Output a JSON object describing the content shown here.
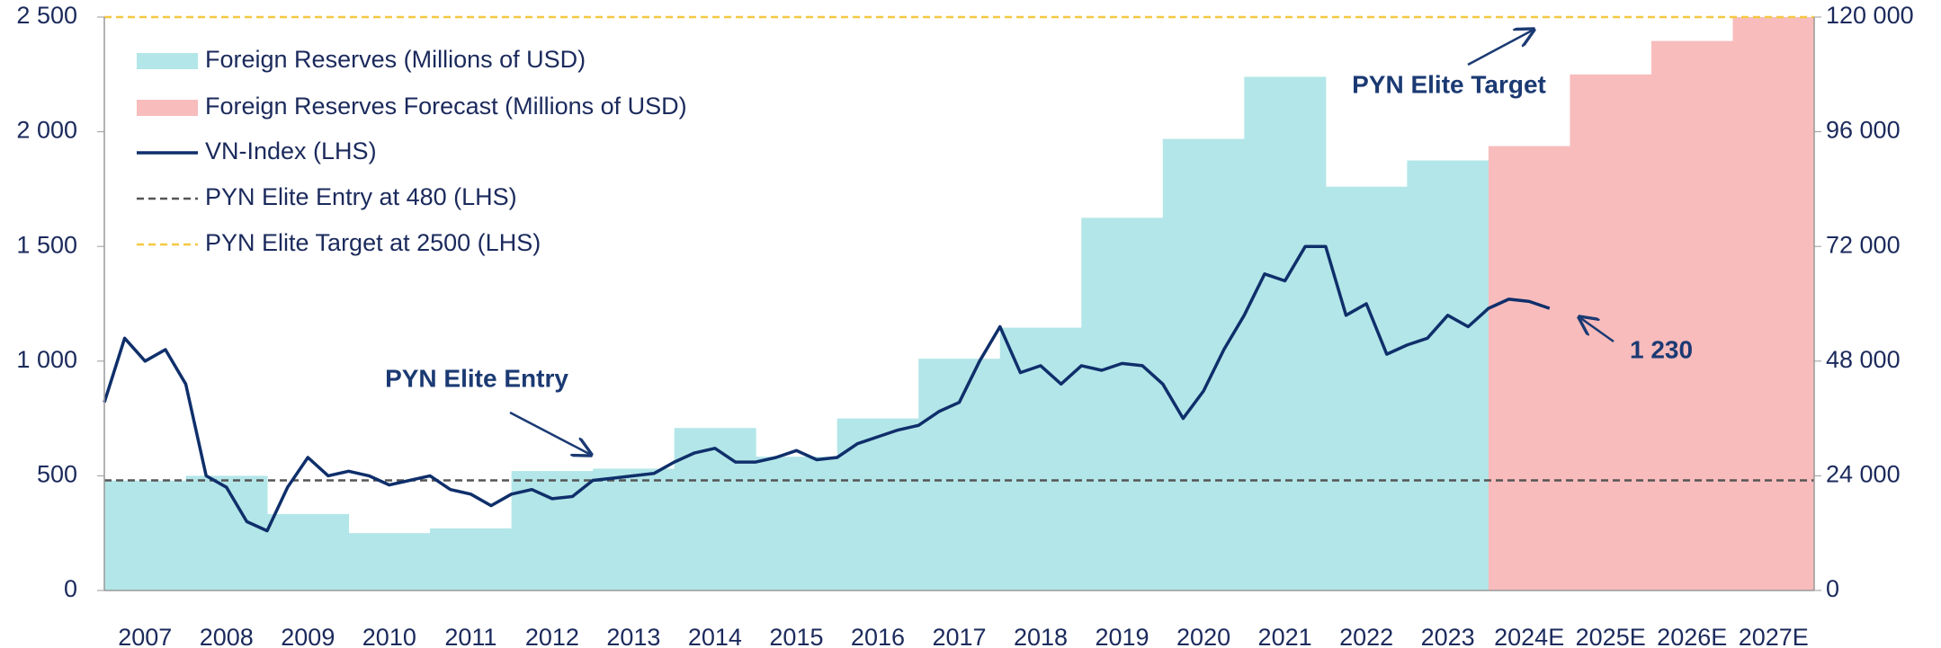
{
  "chart_data": {
    "type": "bar-line",
    "categories": [
      "2007",
      "2008",
      "2009",
      "2010",
      "2011",
      "2012",
      "2013",
      "2014",
      "2015",
      "2016",
      "2017",
      "2018",
      "2019",
      "2020",
      "2021",
      "2022",
      "2023",
      "2024E",
      "2025E",
      "2026E",
      "2027E"
    ],
    "series": [
      {
        "name": "Foreign Reserves (Millions of USD)",
        "color": "#b3e6e8",
        "axis": "y2",
        "values": [
          23000,
          24000,
          16000,
          12000,
          13000,
          25000,
          25500,
          34000,
          28000,
          36000,
          48500,
          55000,
          78000,
          94500,
          107500,
          84500,
          90000,
          null,
          null,
          null,
          null
        ]
      },
      {
        "name": "Foreign Reserves Forecast (Millions of USD)",
        "color": "#f8bcbc",
        "axis": "y2",
        "values": [
          null,
          null,
          null,
          null,
          null,
          null,
          null,
          null,
          null,
          null,
          null,
          null,
          null,
          null,
          null,
          null,
          null,
          93000,
          108000,
          115000,
          120000
        ]
      },
      {
        "name": "VN-Index (LHS)",
        "color": "#0f2f6b",
        "type": "line",
        "x": [
          2007.0,
          2007.25,
          2007.5,
          2007.75,
          2008.0,
          2008.25,
          2008.5,
          2008.75,
          2009.0,
          2009.25,
          2009.5,
          2009.75,
          2010.0,
          2010.25,
          2010.5,
          2010.75,
          2011.0,
          2011.25,
          2011.5,
          2011.75,
          2012.0,
          2012.25,
          2012.5,
          2012.75,
          2013.0,
          2013.25,
          2013.5,
          2013.75,
          2014.0,
          2014.25,
          2014.5,
          2014.75,
          2015.0,
          2015.25,
          2015.5,
          2015.75,
          2016.0,
          2016.25,
          2016.5,
          2016.75,
          2017.0,
          2017.25,
          2017.5,
          2017.75,
          2018.0,
          2018.25,
          2018.5,
          2018.75,
          2019.0,
          2019.25,
          2019.5,
          2019.75,
          2020.0,
          2020.25,
          2020.5,
          2020.75,
          2021.0,
          2021.25,
          2021.5,
          2021.75,
          2022.0,
          2022.25,
          2022.5,
          2022.75,
          2023.0,
          2023.25,
          2023.5,
          2023.75,
          2024.0,
          2024.25,
          2024.5,
          2024.75
        ],
        "values": [
          820,
          1100,
          1000,
          1050,
          900,
          500,
          450,
          300,
          260,
          450,
          580,
          500,
          520,
          500,
          460,
          480,
          500,
          440,
          420,
          370,
          420,
          440,
          400,
          410,
          480,
          490,
          500,
          510,
          560,
          600,
          620,
          560,
          560,
          580,
          610,
          570,
          580,
          640,
          670,
          700,
          720,
          780,
          820,
          1000,
          1150,
          950,
          980,
          900,
          980,
          960,
          990,
          980,
          900,
          750,
          870,
          1050,
          1200,
          1380,
          1350,
          1500,
          1500,
          1200,
          1250,
          1030,
          1070,
          1100,
          1200,
          1150,
          1230,
          1270,
          1260,
          1230
        ]
      },
      {
        "name": "PYN Elite Entry at 480 (LHS)",
        "color": "#555555",
        "type": "hline",
        "value": 480
      },
      {
        "name": "PYN Elite Target at 2500 (LHS)",
        "color": "#f5c842",
        "type": "hline",
        "value": 2500
      }
    ],
    "ylim": [
      0,
      2500
    ],
    "yticks": [
      0,
      500,
      {
        "value": 1000,
        "label": "1 000"
      },
      {
        "value": 1500,
        "label": "1 500"
      },
      {
        "value": 2000,
        "label": "2 000"
      },
      {
        "value": 2500,
        "label": "2 500"
      }
    ],
    "y2lim": [
      0,
      120000
    ],
    "y2ticks": [
      0,
      {
        "value": 24000,
        "label": "24 000"
      },
      {
        "value": 48000,
        "label": "48 000"
      },
      {
        "value": 72000,
        "label": "72 000"
      },
      {
        "value": 96000,
        "label": "96 000"
      },
      {
        "value": 120000,
        "label": "120 000"
      }
    ],
    "annotations": [
      {
        "text": "PYN Elite Entry"
      },
      {
        "text": "PYN Elite Target"
      },
      {
        "text": "1 230",
        "value": 1230
      }
    ],
    "legend": "top-left"
  }
}
